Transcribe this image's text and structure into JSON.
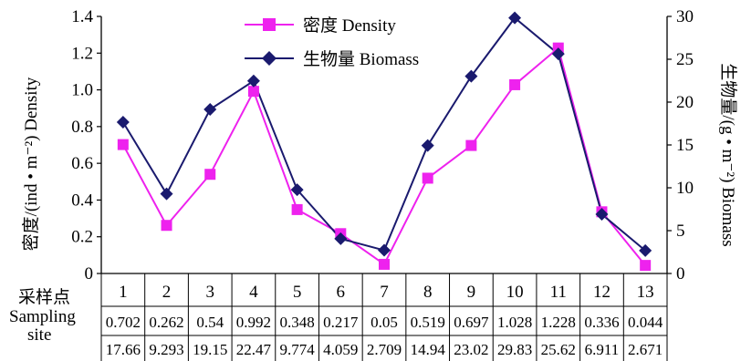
{
  "chart_data": {
    "type": "line",
    "y_left_label": "密度/(ind • m⁻²) Density",
    "y_right_label": "生物量/(g • m⁻²) Biomass",
    "x_label_lines": [
      "采样点",
      "Sampling",
      "site"
    ],
    "categories": [
      "1",
      "2",
      "3",
      "4",
      "5",
      "6",
      "7",
      "8",
      "9",
      "10",
      "11",
      "12",
      "13"
    ],
    "y_left_ticks": [
      "0",
      "0.2",
      "0.4",
      "0.6",
      "0.8",
      "1.0",
      "1.2",
      "1.4"
    ],
    "y_right_ticks": [
      "0",
      "5",
      "10",
      "15",
      "20",
      "25",
      "30"
    ],
    "ylim_left": [
      0,
      1.4
    ],
    "ylim_right": [
      0,
      30
    ],
    "series": [
      {
        "name": "密度  Density",
        "axis": "left",
        "color": "#ee22ee",
        "marker": "square",
        "values": [
          0.702,
          0.262,
          0.54,
          0.992,
          0.348,
          0.217,
          0.05,
          0.519,
          0.697,
          1.028,
          1.228,
          0.336,
          0.044
        ],
        "value_labels": [
          "0.702",
          "0.262",
          "0.54",
          "0.992",
          "0.348",
          "0.217",
          "0.05",
          "0.519",
          "0.697",
          "1.028",
          "1.228",
          "0.336",
          "0.044"
        ]
      },
      {
        "name": "生物量 Biomass",
        "axis": "right",
        "color": "#1a1a6e",
        "marker": "diamond",
        "values": [
          17.66,
          9.293,
          19.15,
          22.47,
          9.774,
          4.059,
          2.709,
          14.94,
          23.02,
          29.83,
          25.62,
          6.911,
          2.671
        ],
        "value_labels": [
          "17.66",
          "9.293",
          "19.15",
          "22.47",
          "9.774",
          "4.059",
          "2.709",
          "14.94",
          "23.02",
          "29.83",
          "25.62",
          "6.911",
          "2.671"
        ]
      }
    ],
    "legend_position": "top-center"
  }
}
